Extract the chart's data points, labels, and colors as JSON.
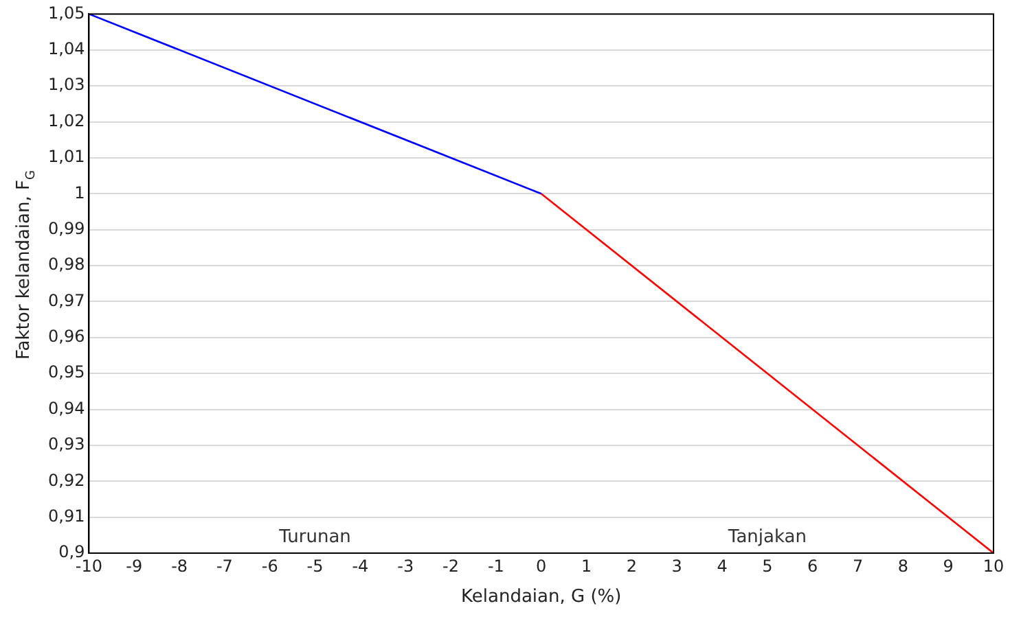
{
  "chart_data": {
    "type": "line",
    "xlabel": "Kelandaian, G (%)",
    "ylabel": "Faktor kelandaian, F$_{G}$",
    "series": [
      {
        "color": "#0000ff",
        "x": [
          -10,
          0
        ],
        "values": [
          1.05,
          1.0
        ]
      },
      {
        "color": "#ff0000",
        "x": [
          0,
          10
        ],
        "values": [
          1.0,
          0.9
        ]
      }
    ],
    "xlim": [
      -10,
      10
    ],
    "xticks": [
      -10,
      -9,
      -8,
      -7,
      -6,
      -5,
      -4,
      -3,
      -2,
      -1,
      0,
      1,
      2,
      3,
      4,
      5,
      6,
      7,
      8,
      9,
      10
    ],
    "ylim": [
      0.9,
      1.05
    ],
    "yticks": [
      {
        "value": 0.9,
        "label": "0,9"
      },
      {
        "value": 0.91,
        "label": "0,91"
      },
      {
        "value": 0.92,
        "label": "0,92"
      },
      {
        "value": 0.93,
        "label": "0,93"
      },
      {
        "value": 0.94,
        "label": "0,94"
      },
      {
        "value": 0.95,
        "label": "0,95"
      },
      {
        "value": 0.96,
        "label": "0,96"
      },
      {
        "value": 0.97,
        "label": "0,97"
      },
      {
        "value": 0.98,
        "label": "0,98"
      },
      {
        "value": 0.99,
        "label": "0,99"
      },
      {
        "value": 1,
        "label": "1"
      },
      {
        "value": 1.01,
        "label": "1,01"
      },
      {
        "value": 1.02,
        "label": "1,02"
      },
      {
        "value": 1.03,
        "label": "1,03"
      },
      {
        "value": 1.04,
        "label": "1,04"
      },
      {
        "value": 1.05,
        "label": "1,05"
      }
    ],
    "grid": "y",
    "marker": "none",
    "line_style": "solid",
    "legend": false,
    "annotations": [
      "Turunan",
      "Tanjakan"
    ]
  }
}
